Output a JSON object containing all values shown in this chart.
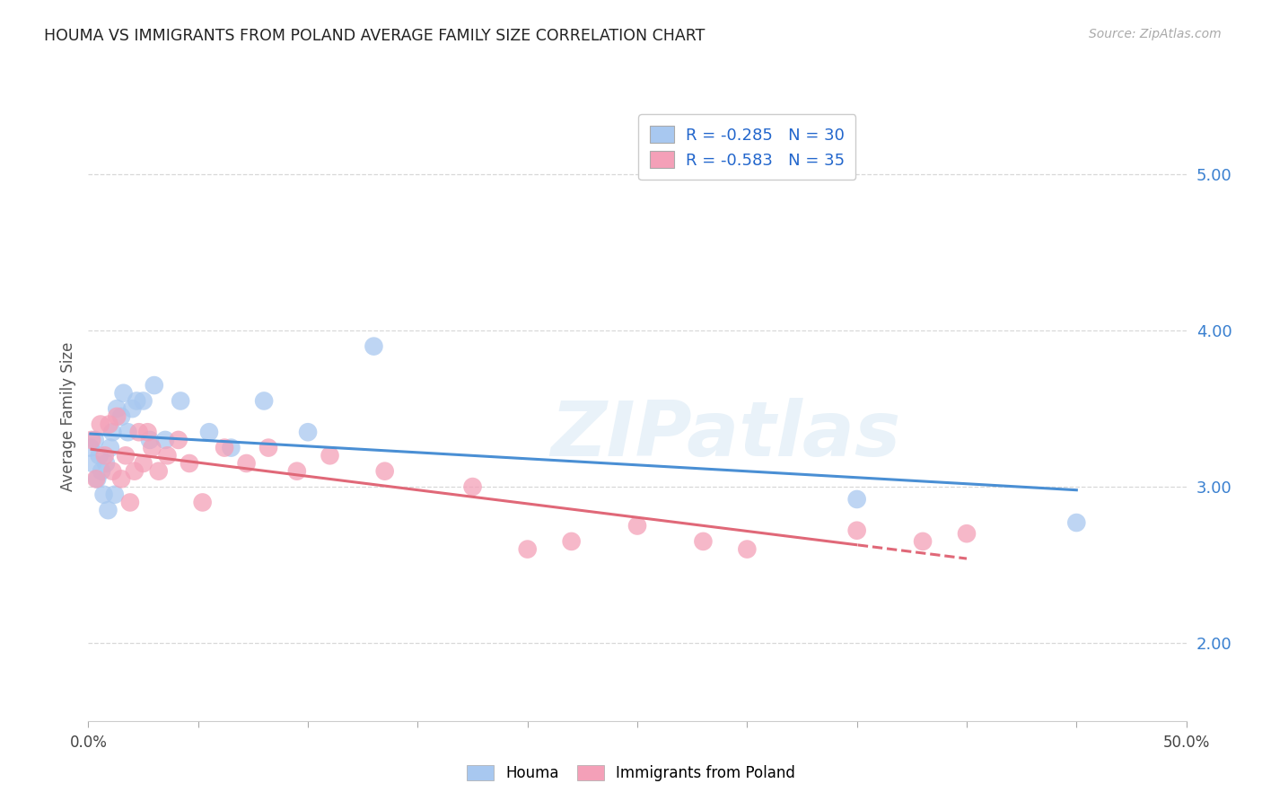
{
  "title": "HOUMA VS IMMIGRANTS FROM POLAND AVERAGE FAMILY SIZE CORRELATION CHART",
  "source": "Source: ZipAtlas.com",
  "ylabel": "Average Family Size",
  "background_color": "#ffffff",
  "grid_color": "#d8d8d8",
  "watermark": "ZIPatlas",
  "yticks_right": [
    2.0,
    3.0,
    4.0,
    5.0
  ],
  "xlim": [
    0,
    50
  ],
  "ylim": [
    1.5,
    5.4
  ],
  "series": [
    {
      "name": "Houma",
      "R": -0.285,
      "N": 30,
      "dot_color": "#a8c8f0",
      "line_color": "#4a8fd4",
      "line_style": "solid",
      "x": [
        0.1,
        0.2,
        0.3,
        0.4,
        0.5,
        0.6,
        0.7,
        0.8,
        0.9,
        1.0,
        1.1,
        1.2,
        1.3,
        1.5,
        1.6,
        1.8,
        2.0,
        2.2,
        2.5,
        2.8,
        3.0,
        3.5,
        4.2,
        5.5,
        6.5,
        8.0,
        10.0,
        13.0,
        35.0,
        45.0
      ],
      "y": [
        3.25,
        3.15,
        3.3,
        3.05,
        3.2,
        3.1,
        2.95,
        3.15,
        2.85,
        3.25,
        3.35,
        2.95,
        3.5,
        3.45,
        3.6,
        3.35,
        3.5,
        3.55,
        3.55,
        3.3,
        3.65,
        3.3,
        3.55,
        3.35,
        3.25,
        3.55,
        3.35,
        3.9,
        2.92,
        2.77
      ]
    },
    {
      "name": "Immigrants from Poland",
      "R": -0.583,
      "N": 35,
      "dot_color": "#f4a0b8",
      "line_color": "#e06878",
      "line_style": "solid_then_dashed",
      "solid_end": 35,
      "x": [
        0.15,
        0.35,
        0.55,
        0.75,
        0.95,
        1.1,
        1.3,
        1.5,
        1.7,
        1.9,
        2.1,
        2.3,
        2.5,
        2.7,
        2.9,
        3.2,
        3.6,
        4.1,
        4.6,
        5.2,
        6.2,
        7.2,
        8.2,
        9.5,
        11.0,
        13.5,
        17.5,
        20.0,
        22.0,
        25.0,
        28.0,
        30.0,
        35.0,
        38.0,
        40.0
      ],
      "y": [
        3.3,
        3.05,
        3.4,
        3.2,
        3.4,
        3.1,
        3.45,
        3.05,
        3.2,
        2.9,
        3.1,
        3.35,
        3.15,
        3.35,
        3.25,
        3.1,
        3.2,
        3.3,
        3.15,
        2.9,
        3.25,
        3.15,
        3.25,
        3.1,
        3.2,
        3.1,
        3.0,
        2.6,
        2.65,
        2.75,
        2.65,
        2.6,
        2.72,
        2.65,
        2.7
      ]
    }
  ]
}
